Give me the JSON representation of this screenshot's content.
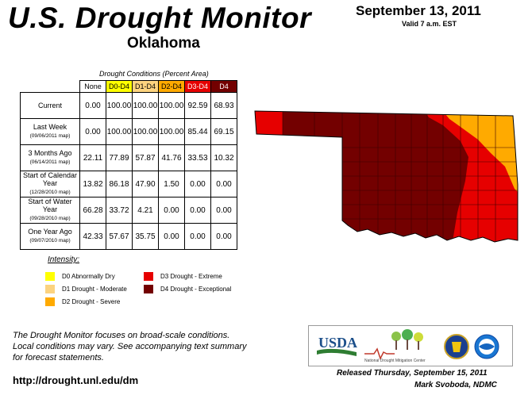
{
  "header": {
    "title": "U.S. Drought Monitor",
    "region": "Oklahoma",
    "date": "September 13, 2011",
    "valid": "Valid 7 a.m. EST"
  },
  "table": {
    "caption": "Drought Conditions (Percent Area)",
    "columns": [
      "None",
      "D0-D4",
      "D1-D4",
      "D2-D4",
      "D3-D4",
      "D4"
    ],
    "rows": [
      {
        "label": "Current",
        "sub": "",
        "values": [
          "0.00",
          "100.00",
          "100.00",
          "100.00",
          "92.59",
          "68.93"
        ]
      },
      {
        "label": "Last Week",
        "sub": "(09/06/2011 map)",
        "values": [
          "0.00",
          "100.00",
          "100.00",
          "100.00",
          "85.44",
          "69.15"
        ]
      },
      {
        "label": "3 Months Ago",
        "sub": "(06/14/2011 map)",
        "values": [
          "22.11",
          "77.89",
          "57.87",
          "41.76",
          "33.53",
          "10.32"
        ]
      },
      {
        "label": "Start of Calendar Year",
        "sub": "(12/28/2010 map)",
        "values": [
          "13.82",
          "86.18",
          "47.90",
          "1.50",
          "0.00",
          "0.00"
        ]
      },
      {
        "label": "Start of Water Year",
        "sub": "(09/28/2010 map)",
        "values": [
          "66.28",
          "33.72",
          "4.21",
          "0.00",
          "0.00",
          "0.00"
        ]
      },
      {
        "label": "One Year Ago",
        "sub": "(09/07/2010 map)",
        "values": [
          "42.33",
          "57.67",
          "35.75",
          "0.00",
          "0.00",
          "0.00"
        ]
      }
    ]
  },
  "legend": {
    "title": "Intensity:",
    "items": [
      {
        "label": "D0 Abnormally Dry",
        "color": "#ffff00"
      },
      {
        "label": "D1 Drought - Moderate",
        "color": "#fcd37f"
      },
      {
        "label": "D2 Drought - Severe",
        "color": "#ffaa00"
      },
      {
        "label": "D3 Drought - Extreme",
        "color": "#e60000"
      },
      {
        "label": "D4 Drought - Exceptional",
        "color": "#730000"
      }
    ]
  },
  "footer": {
    "note_line1": "The Drought Monitor focuses on broad-scale conditions.",
    "note_line2": "Local conditions may vary. See accompanying text summary",
    "note_line3": "for forecast statements.",
    "url": "http://drought.unl.edu/dm",
    "released": "Released Thursday, September 15, 2011",
    "author": "Mark Svoboda, NDMC"
  },
  "logos": {
    "usda": "USDA",
    "ndmc": "National Drought Mitigation Center"
  }
}
